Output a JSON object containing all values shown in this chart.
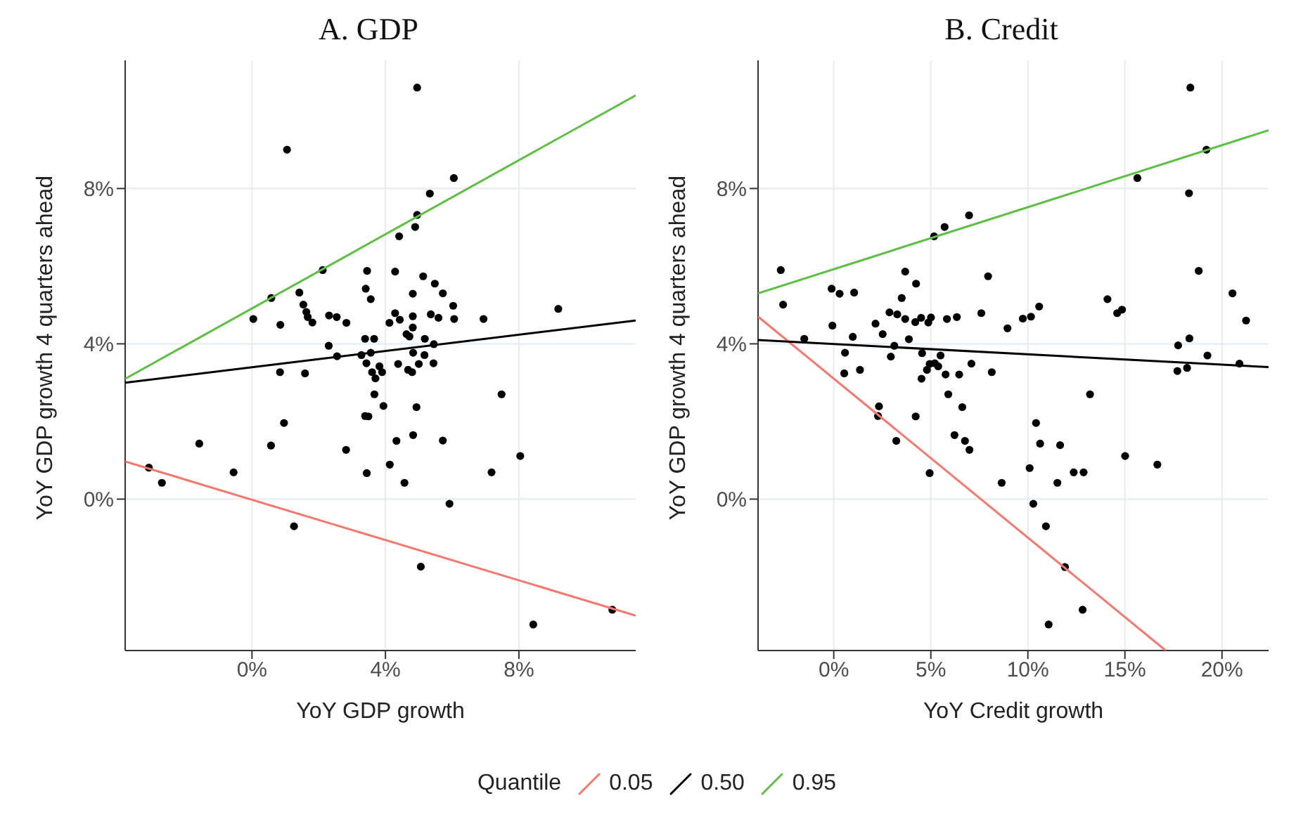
{
  "chart_data": [
    {
      "type": "scatter",
      "title": "A. GDP",
      "xlabel": "YoY GDP growth",
      "ylabel": "YoY GDP growth 4 quarters ahead",
      "xlim": [
        -3.8,
        11.5
      ],
      "ylim": [
        -3.9,
        11.3
      ],
      "xticks": [
        {
          "value": 0,
          "label": "0%"
        },
        {
          "value": 4,
          "label": "4%"
        },
        {
          "value": 8,
          "label": "8%"
        }
      ],
      "yticks": [
        {
          "value": 0,
          "label": "0%"
        },
        {
          "value": 4,
          "label": "4%"
        },
        {
          "value": 8,
          "label": "8%"
        }
      ],
      "grid": true,
      "legend": "bottom",
      "legend_title": "Quantile",
      "marker": "circle",
      "series": [
        {
          "type": "scatter",
          "color": "#000000",
          "x": [
            4.95,
            1.05,
            6.05,
            5.33,
            4.95,
            4.89,
            4.41,
            2.12,
            3.45,
            4.29,
            5.13,
            5.48,
            0.58,
            1.42,
            3.41,
            3.56,
            4.82,
            5.72,
            6.03,
            1.54,
            1.63,
            1.67,
            1.81,
            0.04,
            0.85,
            2.31,
            2.54,
            2.83,
            4.12,
            4.29,
            4.43,
            4.82,
            4.82,
            5.36,
            5.59,
            6.06,
            6.94,
            9.18,
            4.63,
            4.72,
            5.18,
            5.45,
            3.39,
            3.66,
            2.3,
            2.55,
            3.28,
            3.56,
            4.83,
            5.17,
            3.43,
            3.82,
            3.9,
            3.6,
            3.7,
            4.38,
            5.0,
            5.44,
            4.68,
            4.8,
            0.84,
            1.59,
            3.67,
            7.48,
            3.94,
            4.93,
            3.39,
            3.49,
            0.96,
            -1.58,
            0.57,
            2.82,
            4.33,
            4.83,
            5.72,
            4.13,
            3.44,
            4.57,
            7.18,
            8.04,
            -3.09,
            -2.7,
            -0.55,
            5.92,
            1.26,
            5.06,
            10.8,
            8.43
          ],
          "values": [
            10.6,
            9.0,
            8.27,
            7.87,
            7.32,
            7.01,
            6.77,
            5.9,
            5.88,
            5.86,
            5.74,
            5.55,
            5.18,
            5.32,
            5.42,
            5.15,
            5.29,
            5.3,
            4.98,
            5.01,
            4.82,
            4.69,
            4.55,
            4.64,
            4.49,
            4.73,
            4.69,
            4.54,
            4.54,
            4.79,
            4.62,
            4.71,
            4.42,
            4.76,
            4.67,
            4.64,
            4.64,
            4.9,
            4.25,
            4.19,
            4.13,
            3.99,
            4.13,
            4.13,
            3.95,
            3.68,
            3.71,
            3.77,
            3.77,
            3.71,
            3.5,
            3.42,
            3.27,
            3.27,
            3.11,
            3.48,
            3.48,
            3.5,
            3.33,
            3.27,
            3.27,
            3.24,
            2.7,
            2.7,
            2.4,
            2.37,
            2.14,
            2.13,
            1.96,
            1.43,
            1.38,
            1.27,
            1.5,
            1.65,
            1.51,
            0.89,
            0.67,
            0.42,
            0.69,
            1.11,
            0.81,
            0.42,
            0.69,
            -0.12,
            -0.7,
            -1.74,
            -2.85,
            -3.23
          ]
        },
        {
          "type": "line",
          "name": "0.05",
          "color": "#f8766d",
          "marker": "none",
          "x": [
            -3.8,
            11.5
          ],
          "values": [
            0.97,
            -3.0
          ]
        },
        {
          "type": "line",
          "name": "0.50",
          "color": "#000000",
          "marker": "none",
          "x": [
            -3.8,
            11.5
          ],
          "values": [
            3.0,
            4.6
          ]
        },
        {
          "type": "line",
          "name": "0.95",
          "color": "#5ebf45",
          "marker": "none",
          "x": [
            -3.8,
            11.5
          ],
          "values": [
            3.1,
            10.4
          ]
        }
      ]
    },
    {
      "type": "scatter",
      "title": "B. Credit",
      "xlabel": "YoY Credit growth",
      "ylabel": "YoY GDP growth 4 quarters ahead",
      "xlim": [
        -3.9,
        22.4
      ],
      "ylim": [
        -3.9,
        11.3
      ],
      "xticks": [
        {
          "value": 0,
          "label": "0%"
        },
        {
          "value": 5,
          "label": "5%"
        },
        {
          "value": 10,
          "label": "10%"
        },
        {
          "value": 15,
          "label": "15%"
        },
        {
          "value": 20,
          "label": "20%"
        }
      ],
      "yticks": [
        {
          "value": 0,
          "label": "0%"
        },
        {
          "value": 4,
          "label": "4%"
        },
        {
          "value": 8,
          "label": "8%"
        }
      ],
      "grid": true,
      "marker": "circle",
      "series": [
        {
          "type": "scatter",
          "color": "#000000",
          "x": [
            18.37,
            19.2,
            15.64,
            18.3,
            6.97,
            5.71,
            5.17,
            -2.73,
            18.8,
            3.68,
            7.95,
            4.24,
            -2.61,
            -0.11,
            0.3,
            1.05,
            3.5,
            20.54,
            14.1,
            14.6,
            14.85,
            10.58,
            10.16,
            9.74,
            8.95,
            7.6,
            6.34,
            5.83,
            5.01,
            4.87,
            4.5,
            4.2,
            3.68,
            3.27,
            2.87,
            2.15,
            2.52,
            -0.07,
            0.98,
            -1.52,
            21.24,
            17.74,
            18.32,
            19.25,
            20.9,
            17.7,
            18.2,
            3.12,
            3.87,
            0.58,
            2.94,
            4.55,
            5.5,
            4.94,
            5.2,
            5.38,
            7.09,
            4.8,
            0.54,
            1.35,
            4.52,
            5.76,
            6.46,
            8.14,
            5.9,
            13.2,
            6.62,
            2.33,
            2.28,
            4.22,
            3.22,
            6.22,
            6.76,
            6.99,
            4.94,
            8.65,
            10.42,
            10.63,
            11.66,
            10.09,
            12.36,
            12.87,
            11.52,
            15.01,
            16.67,
            10.28,
            10.93,
            11.91,
            12.82,
            11.07
          ],
          "values": [
            10.6,
            9.0,
            8.27,
            7.88,
            7.31,
            7.01,
            6.77,
            5.9,
            5.88,
            5.86,
            5.74,
            5.55,
            5.01,
            5.42,
            5.29,
            5.32,
            5.18,
            5.3,
            5.15,
            4.79,
            4.88,
            4.96,
            4.7,
            4.65,
            4.4,
            4.79,
            4.69,
            4.64,
            4.68,
            4.55,
            4.67,
            4.56,
            4.64,
            4.76,
            4.81,
            4.52,
            4.25,
            4.47,
            4.18,
            4.13,
            4.6,
            3.96,
            4.14,
            3.7,
            3.49,
            3.3,
            3.38,
            3.95,
            4.12,
            3.77,
            3.67,
            3.76,
            3.7,
            3.48,
            3.5,
            3.42,
            3.49,
            3.33,
            3.24,
            3.33,
            3.1,
            3.21,
            3.21,
            3.27,
            2.7,
            2.7,
            2.37,
            2.39,
            2.14,
            2.13,
            1.5,
            1.65,
            1.5,
            1.27,
            0.67,
            0.42,
            1.96,
            1.43,
            1.39,
            0.8,
            0.69,
            0.69,
            0.42,
            1.11,
            0.89,
            -0.12,
            -0.7,
            -1.75,
            -2.85,
            -3.23
          ]
        },
        {
          "type": "line",
          "name": "0.05",
          "color": "#f8766d",
          "marker": "none",
          "x": [
            -3.9,
            17.1
          ],
          "values": [
            4.7,
            -3.9
          ]
        },
        {
          "type": "line",
          "name": "0.50",
          "color": "#000000",
          "marker": "none",
          "x": [
            -3.9,
            22.4
          ],
          "values": [
            4.1,
            3.4
          ]
        },
        {
          "type": "line",
          "name": "0.95",
          "color": "#5ebf45",
          "marker": "none",
          "x": [
            -3.9,
            22.4
          ],
          "values": [
            5.3,
            9.5
          ]
        }
      ]
    }
  ]
}
